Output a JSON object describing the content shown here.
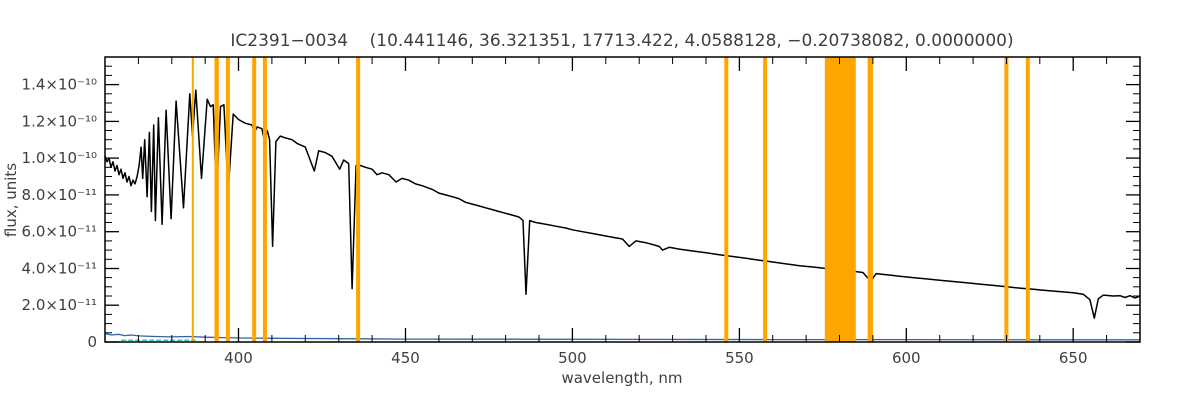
{
  "title": "IC2391−0034    (10.441146, 36.321351, 17713.422, 4.0588128, −0.20738082, 0.0000000)",
  "chart_data": {
    "type": "line",
    "title": "IC2391−0034    (10.441146, 36.321351, 17713.422, 4.0588128, −0.20738082, 0.0000000)",
    "xlabel": "wavelength, nm",
    "ylabel": "flux, units",
    "xlim": [
      360,
      670
    ],
    "ylim": [
      0,
      1.55e-10
    ],
    "flux_scale": 1e-11,
    "grid": false,
    "legend": "none",
    "colors": {
      "frame": "#000000",
      "text": "#3f3f3f",
      "band": "#ffa500",
      "spectrum": "#000000",
      "error": "#3465a4",
      "sky": "#00b0b0"
    },
    "x_ticks": {
      "major": [
        400,
        450,
        500,
        550,
        600,
        650
      ],
      "minor_step": 10
    },
    "y_ticks": {
      "major": [
        {
          "value": 0,
          "label": "0"
        },
        {
          "value": 2,
          "label": "2.0×10⁻¹¹"
        },
        {
          "value": 4,
          "label": "4.0×10⁻¹¹"
        },
        {
          "value": 6,
          "label": "6.0×10⁻¹¹"
        },
        {
          "value": 8,
          "label": "8.0×10⁻¹¹"
        },
        {
          "value": 10,
          "label": "1.0×10⁻¹⁰"
        },
        {
          "value": 12,
          "label": "1.2×10⁻¹⁰"
        },
        {
          "value": 14,
          "label": "1.4×10⁻¹⁰"
        }
      ],
      "minor_step": 0.5
    },
    "masked_bands": {
      "color": "#ffa500",
      "ranges_nm": [
        [
          386.0,
          386.6
        ],
        [
          392.8,
          394.1
        ],
        [
          396.2,
          397.4
        ],
        [
          404.1,
          405.3
        ],
        [
          407.3,
          408.5
        ],
        [
          435.2,
          436.4
        ],
        [
          545.5,
          546.7
        ],
        [
          557.1,
          558.3
        ],
        [
          575.6,
          584.9
        ],
        [
          588.4,
          590.0
        ],
        [
          629.4,
          630.6
        ],
        [
          635.8,
          637.0
        ]
      ]
    },
    "series": [
      {
        "name": "sky-segment",
        "color": "#00b0b0",
        "width": 1.2,
        "dash": "4,3",
        "points": [
          [
            365,
            0.1
          ],
          [
            387,
            0.1
          ]
        ]
      },
      {
        "name": "error-spectrum",
        "color": "#3465a4",
        "width": 1.3,
        "points": [
          [
            360,
            0.45
          ],
          [
            362,
            0.38
          ],
          [
            364,
            0.42
          ],
          [
            366,
            0.35
          ],
          [
            368,
            0.38
          ],
          [
            370,
            0.33
          ],
          [
            375,
            0.3
          ],
          [
            380,
            0.28
          ],
          [
            385,
            0.3
          ],
          [
            390,
            0.26
          ],
          [
            400,
            0.22
          ],
          [
            410,
            0.2
          ],
          [
            430,
            0.18
          ],
          [
            450,
            0.16
          ],
          [
            480,
            0.15
          ],
          [
            520,
            0.14
          ],
          [
            560,
            0.13
          ],
          [
            600,
            0.13
          ],
          [
            640,
            0.12
          ],
          [
            670,
            0.12
          ]
        ]
      },
      {
        "name": "flux-spectrum",
        "color": "#000000",
        "width": 1.5,
        "points": [
          [
            360.0,
            10.1
          ],
          [
            360.6,
            9.8
          ],
          [
            361.2,
            10.0
          ],
          [
            361.8,
            9.5
          ],
          [
            362.4,
            9.8
          ],
          [
            363.0,
            9.3
          ],
          [
            363.6,
            9.6
          ],
          [
            364.2,
            9.1
          ],
          [
            364.8,
            9.4
          ],
          [
            365.4,
            8.9
          ],
          [
            366.0,
            9.2
          ],
          [
            366.6,
            8.7
          ],
          [
            367.2,
            9.0
          ],
          [
            367.8,
            8.5
          ],
          [
            368.4,
            8.8
          ],
          [
            369.0,
            8.6
          ],
          [
            369.6,
            9.0
          ],
          [
            370.2,
            9.6
          ],
          [
            370.8,
            10.6
          ],
          [
            371.3,
            8.9
          ],
          [
            371.9,
            11.0
          ],
          [
            372.6,
            7.9
          ],
          [
            373.3,
            11.4
          ],
          [
            373.9,
            7.1
          ],
          [
            374.6,
            11.8
          ],
          [
            375.1,
            6.6
          ],
          [
            376.0,
            12.2
          ],
          [
            377.1,
            6.4
          ],
          [
            378.3,
            12.6
          ],
          [
            379.8,
            6.7
          ],
          [
            381.3,
            13.1
          ],
          [
            383.5,
            7.3
          ],
          [
            385.4,
            13.5
          ],
          [
            386.2,
            11.2
          ],
          [
            387.2,
            13.7
          ],
          [
            388.9,
            8.9
          ],
          [
            390.6,
            13.2
          ],
          [
            391.6,
            12.8
          ],
          [
            392.4,
            12.9
          ],
          [
            393.4,
            7.8
          ],
          [
            394.6,
            12.8
          ],
          [
            395.6,
            12.9
          ],
          [
            396.9,
            8.2
          ],
          [
            398.4,
            12.4
          ],
          [
            400.0,
            12.1
          ],
          [
            402.0,
            11.9
          ],
          [
            404.0,
            11.8
          ],
          [
            404.8,
            11.4
          ],
          [
            405.6,
            11.7
          ],
          [
            407.0,
            11.6
          ],
          [
            407.8,
            10.9
          ],
          [
            408.6,
            11.5
          ],
          [
            409.3,
            11.0
          ],
          [
            410.2,
            5.2
          ],
          [
            411.2,
            10.9
          ],
          [
            412.5,
            11.2
          ],
          [
            414.0,
            11.1
          ],
          [
            416.0,
            11.0
          ],
          [
            417.5,
            10.8
          ],
          [
            420.0,
            10.6
          ],
          [
            422.7,
            9.3
          ],
          [
            424.0,
            10.4
          ],
          [
            426.0,
            10.3
          ],
          [
            428.0,
            10.1
          ],
          [
            430.3,
            9.4
          ],
          [
            431.5,
            9.9
          ],
          [
            433.0,
            9.7
          ],
          [
            434.0,
            2.9
          ],
          [
            435.2,
            9.6
          ],
          [
            436.5,
            9.6
          ],
          [
            438.0,
            9.5
          ],
          [
            440.0,
            9.4
          ],
          [
            441.5,
            9.1
          ],
          [
            443.0,
            9.2
          ],
          [
            445.0,
            9.1
          ],
          [
            447.2,
            8.7
          ],
          [
            449.0,
            8.9
          ],
          [
            451.0,
            8.8
          ],
          [
            453.0,
            8.6
          ],
          [
            455.0,
            8.5
          ],
          [
            458.0,
            8.3
          ],
          [
            460.0,
            8.1
          ],
          [
            462.0,
            8.0
          ],
          [
            464.0,
            7.9
          ],
          [
            466.0,
            7.8
          ],
          [
            468.0,
            7.6
          ],
          [
            470.0,
            7.5
          ],
          [
            472.0,
            7.4
          ],
          [
            474.0,
            7.3
          ],
          [
            476.0,
            7.2
          ],
          [
            478.0,
            7.1
          ],
          [
            480.0,
            7.0
          ],
          [
            482.0,
            6.9
          ],
          [
            484.0,
            6.8
          ],
          [
            485.2,
            6.6
          ],
          [
            486.1,
            2.6
          ],
          [
            487.2,
            6.6
          ],
          [
            489.0,
            6.5
          ],
          [
            492.0,
            6.4
          ],
          [
            495.0,
            6.3
          ],
          [
            498.0,
            6.2
          ],
          [
            500.0,
            6.1
          ],
          [
            503.0,
            6.0
          ],
          [
            506.0,
            5.9
          ],
          [
            509.0,
            5.8
          ],
          [
            512.0,
            5.7
          ],
          [
            515.0,
            5.6
          ],
          [
            517.0,
            5.2
          ],
          [
            519.0,
            5.5
          ],
          [
            522.0,
            5.4
          ],
          [
            526.0,
            5.2
          ],
          [
            527.0,
            5.0
          ],
          [
            529.0,
            5.15
          ],
          [
            532.0,
            5.05
          ],
          [
            536.0,
            4.95
          ],
          [
            540.0,
            4.85
          ],
          [
            544.0,
            4.75
          ],
          [
            548.0,
            4.65
          ],
          [
            552.0,
            4.55
          ],
          [
            556.0,
            4.45
          ],
          [
            560.0,
            4.35
          ],
          [
            564.0,
            4.25
          ],
          [
            568.0,
            4.15
          ],
          [
            572.0,
            4.08
          ],
          [
            576.0,
            4.0
          ],
          [
            580.0,
            3.92
          ],
          [
            584.0,
            3.85
          ],
          [
            587.0,
            3.78
          ],
          [
            589.3,
            3.3
          ],
          [
            591.0,
            3.72
          ],
          [
            594.0,
            3.66
          ],
          [
            598.0,
            3.58
          ],
          [
            602.0,
            3.5
          ],
          [
            606.0,
            3.43
          ],
          [
            610.0,
            3.36
          ],
          [
            614.0,
            3.29
          ],
          [
            618.0,
            3.22
          ],
          [
            622.0,
            3.15
          ],
          [
            626.0,
            3.08
          ],
          [
            630.0,
            3.0
          ],
          [
            634.0,
            2.93
          ],
          [
            638.0,
            2.87
          ],
          [
            642.0,
            2.8
          ],
          [
            646.0,
            2.74
          ],
          [
            650.0,
            2.68
          ],
          [
            653.0,
            2.6
          ],
          [
            655.0,
            2.3
          ],
          [
            656.3,
            1.3
          ],
          [
            657.5,
            2.35
          ],
          [
            659.0,
            2.55
          ],
          [
            662.0,
            2.5
          ],
          [
            664.0,
            2.52
          ],
          [
            665.5,
            2.42
          ],
          [
            667.0,
            2.52
          ],
          [
            668.5,
            2.4
          ],
          [
            670.0,
            2.5
          ]
        ]
      }
    ]
  }
}
